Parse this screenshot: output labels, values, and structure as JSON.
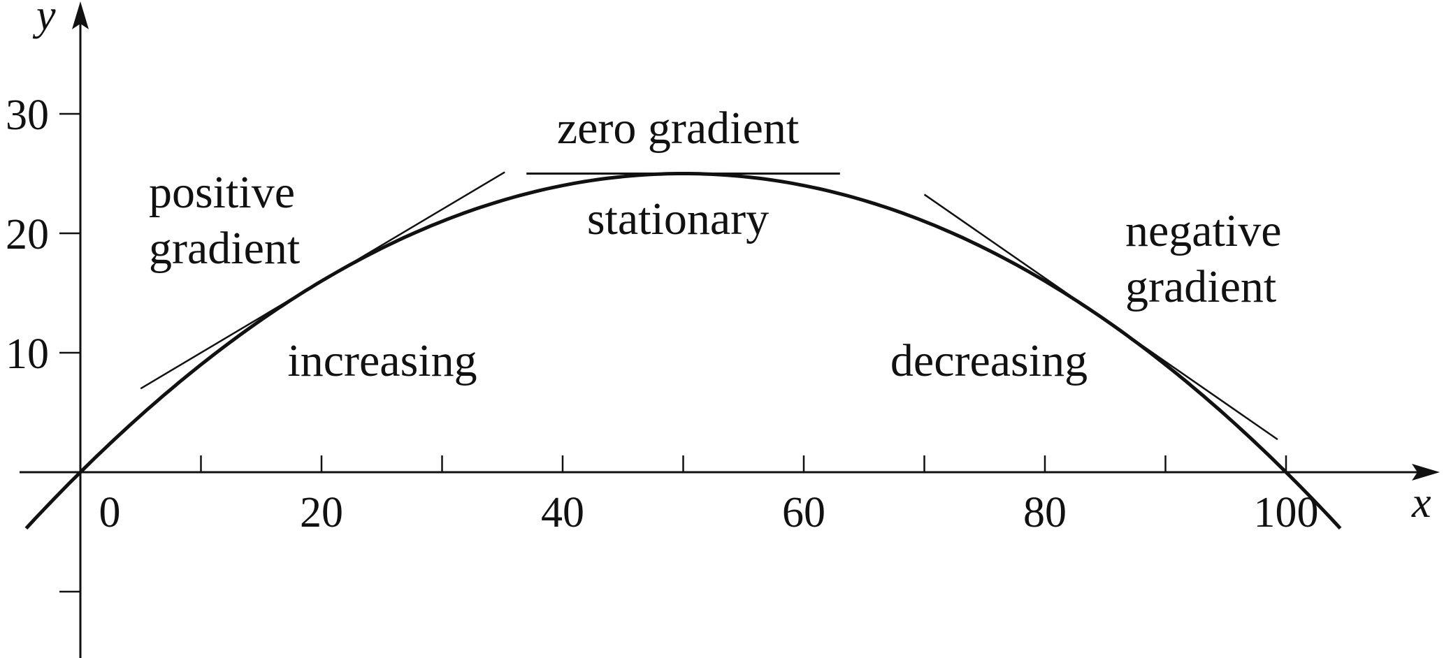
{
  "chart_data": {
    "type": "line",
    "title": "",
    "xlabel": "x",
    "ylabel": "y",
    "xlim": [
      -5,
      105
    ],
    "ylim": [
      -15,
      37
    ],
    "x_ticks": [
      10,
      20,
      30,
      40,
      50,
      60,
      70,
      80,
      90,
      100
    ],
    "x_tick_labels": [
      {
        "x": 0,
        "label": "0"
      },
      {
        "x": 20,
        "label": "20"
      },
      {
        "x": 40,
        "label": "40"
      },
      {
        "x": 60,
        "label": "60"
      },
      {
        "x": 80,
        "label": "80"
      },
      {
        "x": 100,
        "label": "100"
      }
    ],
    "y_ticks": [
      -10,
      10,
      20,
      30
    ],
    "y_tick_labels": [
      {
        "y": 10,
        "label": "10"
      },
      {
        "y": 20,
        "label": "20"
      },
      {
        "y": 30,
        "label": "30"
      }
    ],
    "curve": {
      "equation": "y = x(100 - x)/100",
      "x": [
        -4.5,
        0,
        10,
        20,
        30,
        40,
        50,
        60,
        70,
        80,
        90,
        100,
        104.5
      ],
      "y": [
        -4.7,
        0,
        9,
        16,
        21,
        24,
        25,
        24,
        21,
        16,
        9,
        0,
        -4.7
      ]
    },
    "tangents": [
      {
        "name": "positive",
        "touch_x": 20,
        "slope": 0.6,
        "x_range": [
          5,
          35.2
        ]
      },
      {
        "name": "zero",
        "touch_x": 50,
        "slope": 0,
        "x_range": [
          37,
          63
        ]
      },
      {
        "name": "negative",
        "touch_x": 85,
        "slope": -0.7,
        "x_range": [
          70,
          99.3
        ]
      }
    ],
    "annotations": {
      "positive_gradient": [
        "positive",
        "gradient"
      ],
      "zero_gradient": "zero gradient",
      "stationary": "stationary",
      "increasing": "increasing",
      "decreasing": "decreasing",
      "negative_gradient": [
        "negative",
        "gradient"
      ]
    },
    "grid": false,
    "legend": "none"
  }
}
